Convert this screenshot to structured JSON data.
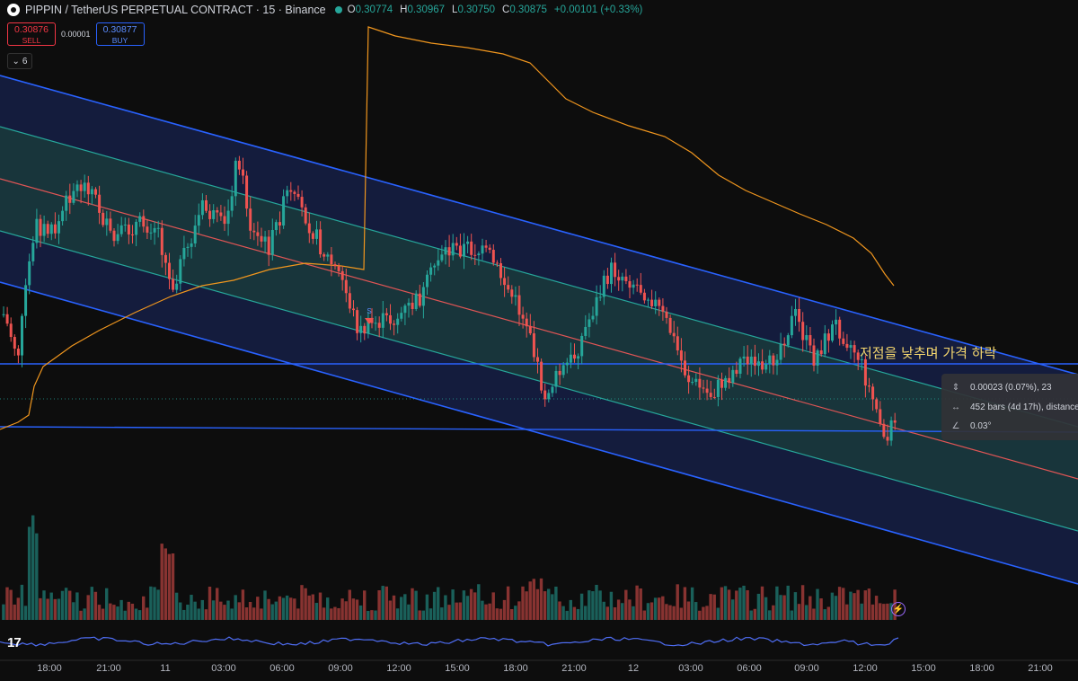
{
  "header": {
    "title": "PIPPIN / TetherUS PERPETUAL CONTRACT · 15 · Binance",
    "ohlc": [
      {
        "k": "O",
        "v": "0.30774"
      },
      {
        "k": "H",
        "v": "0.30967"
      },
      {
        "k": "L",
        "v": "0.30750"
      },
      {
        "k": "C",
        "v": "0.30875"
      }
    ],
    "change": "+0.00101 (+0.33%)"
  },
  "trade": {
    "sell_price": "0.30876",
    "sell_label": "SELL",
    "spread": "0.00001",
    "buy_price": "0.30877",
    "buy_label": "BUY"
  },
  "indicators_collapse": {
    "count": "6"
  },
  "annotation": "저점을 낮추며 가격 하락",
  "measure": {
    "price_row": "0.00023 (0.07%), 23",
    "bars_row": "452 bars (4d 17h), distance",
    "angle_row": "0.03°"
  },
  "x_axis": {
    "labels": [
      "18:00",
      "21:00",
      "11",
      "03:00",
      "06:00",
      "09:00",
      "12:00",
      "15:00",
      "18:00",
      "21:00",
      "12",
      "03:00",
      "06:00",
      "09:00",
      "12:00",
      "15:00",
      "18:00",
      "21:00"
    ]
  },
  "colors": {
    "up": "#26a69a",
    "down": "#ef5350",
    "channel_blue": "#2962ff",
    "channel_mid": "#f06262",
    "channel_inner": "#26a69a",
    "ma": "#f0961e",
    "osc": "#4f6ef5"
  },
  "icons": [
    "tradingview-logo-icon",
    "lightning-icon",
    "chevron-down-icon"
  ]
}
